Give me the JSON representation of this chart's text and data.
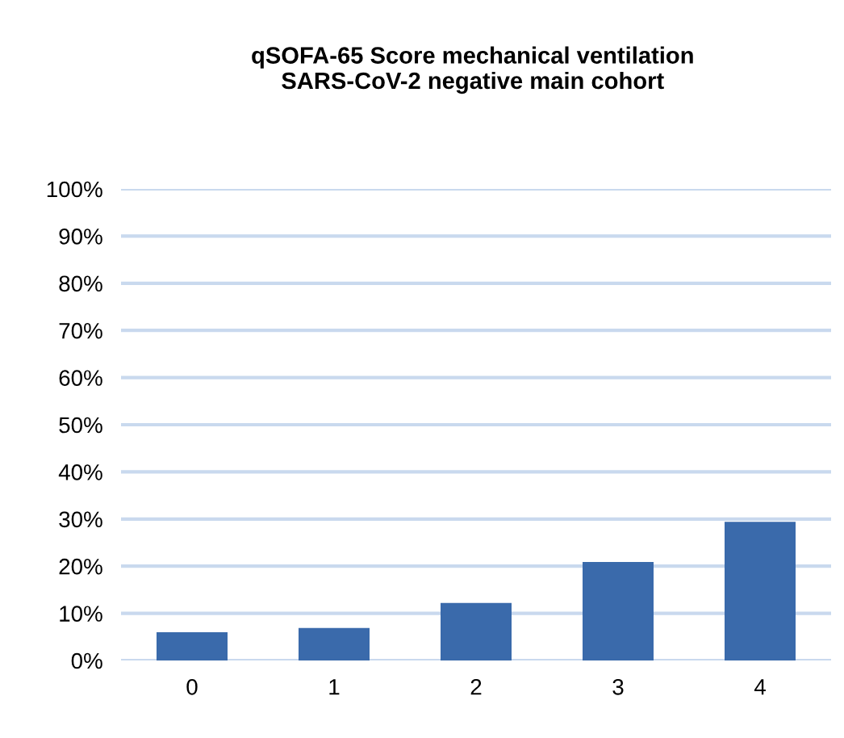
{
  "chart_data": {
    "type": "bar",
    "title": "qSOFA-65 Score mechanical ventilation\nSARS-CoV-2 negative main cohort",
    "categories": [
      "0",
      "1",
      "2",
      "3",
      "4"
    ],
    "values": [
      6.0,
      6.9,
      12.2,
      20.9,
      29.4
    ],
    "color": "#3a6aab",
    "ylim": [
      0,
      100
    ],
    "yticks": [
      {
        "value": 0,
        "label": "0%"
      },
      {
        "value": 10,
        "label": "10%"
      },
      {
        "value": 20,
        "label": "20%"
      },
      {
        "value": 30,
        "label": "30%"
      },
      {
        "value": 40,
        "label": "40%"
      },
      {
        "value": 50,
        "label": "50%"
      },
      {
        "value": 60,
        "label": "60%"
      },
      {
        "value": 70,
        "label": "70%"
      },
      {
        "value": 80,
        "label": "80%"
      },
      {
        "value": 90,
        "label": "90%"
      },
      {
        "value": 100,
        "label": "100%"
      }
    ],
    "grid": "y"
  }
}
